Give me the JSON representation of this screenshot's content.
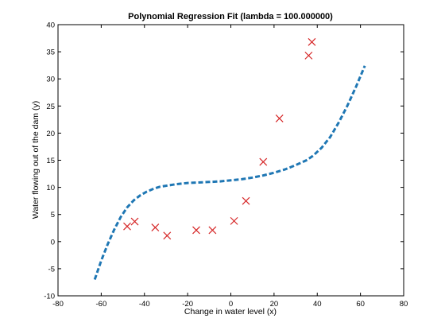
{
  "chart_data": {
    "type": "scatter",
    "title": "Polynomial Regression Fit (lambda = 100.000000)",
    "xlabel": "Change in water level (x)",
    "ylabel": "Water flowing out of the dam (y)",
    "xlim": [
      -80,
      80
    ],
    "ylim": [
      -10,
      40
    ],
    "xticks": [
      -80,
      -60,
      -40,
      -20,
      0,
      20,
      40,
      60,
      80
    ],
    "yticks": [
      -10,
      -5,
      0,
      5,
      10,
      15,
      20,
      25,
      30,
      35,
      40
    ],
    "grid": false,
    "series": [
      {
        "type": "scatter",
        "marker": "x",
        "color": "#d62728",
        "x": [
          -48,
          -44.5,
          -35,
          -29.5,
          -16,
          -8.5,
          1.5,
          7,
          15,
          22.5,
          36,
          37.5
        ],
        "y": [
          2.8,
          3.7,
          2.6,
          1.1,
          2.1,
          2.1,
          3.8,
          7.5,
          14.7,
          22.7,
          34.3,
          36.8
        ]
      },
      {
        "type": "line",
        "style": "dashed",
        "color": "#1f77b4",
        "x": [
          -63,
          -60,
          -57,
          -54,
          -51,
          -48,
          -45,
          -42,
          -39,
          -36,
          -33,
          -30,
          -25,
          -20,
          -15,
          -10,
          -5,
          0,
          5,
          10,
          15,
          20,
          25,
          30,
          35,
          38,
          42,
          46,
          50,
          54,
          58,
          62
        ],
        "y": [
          -7,
          -3.5,
          -0.5,
          2.2,
          4.5,
          6.3,
          7.6,
          8.5,
          9.2,
          9.7,
          10.1,
          10.3,
          10.6,
          10.8,
          10.9,
          11.0,
          11.1,
          11.3,
          11.5,
          11.8,
          12.2,
          12.7,
          13.3,
          14.1,
          15.0,
          15.8,
          17.3,
          19.3,
          22.0,
          25.1,
          28.6,
          32.4
        ]
      }
    ]
  }
}
